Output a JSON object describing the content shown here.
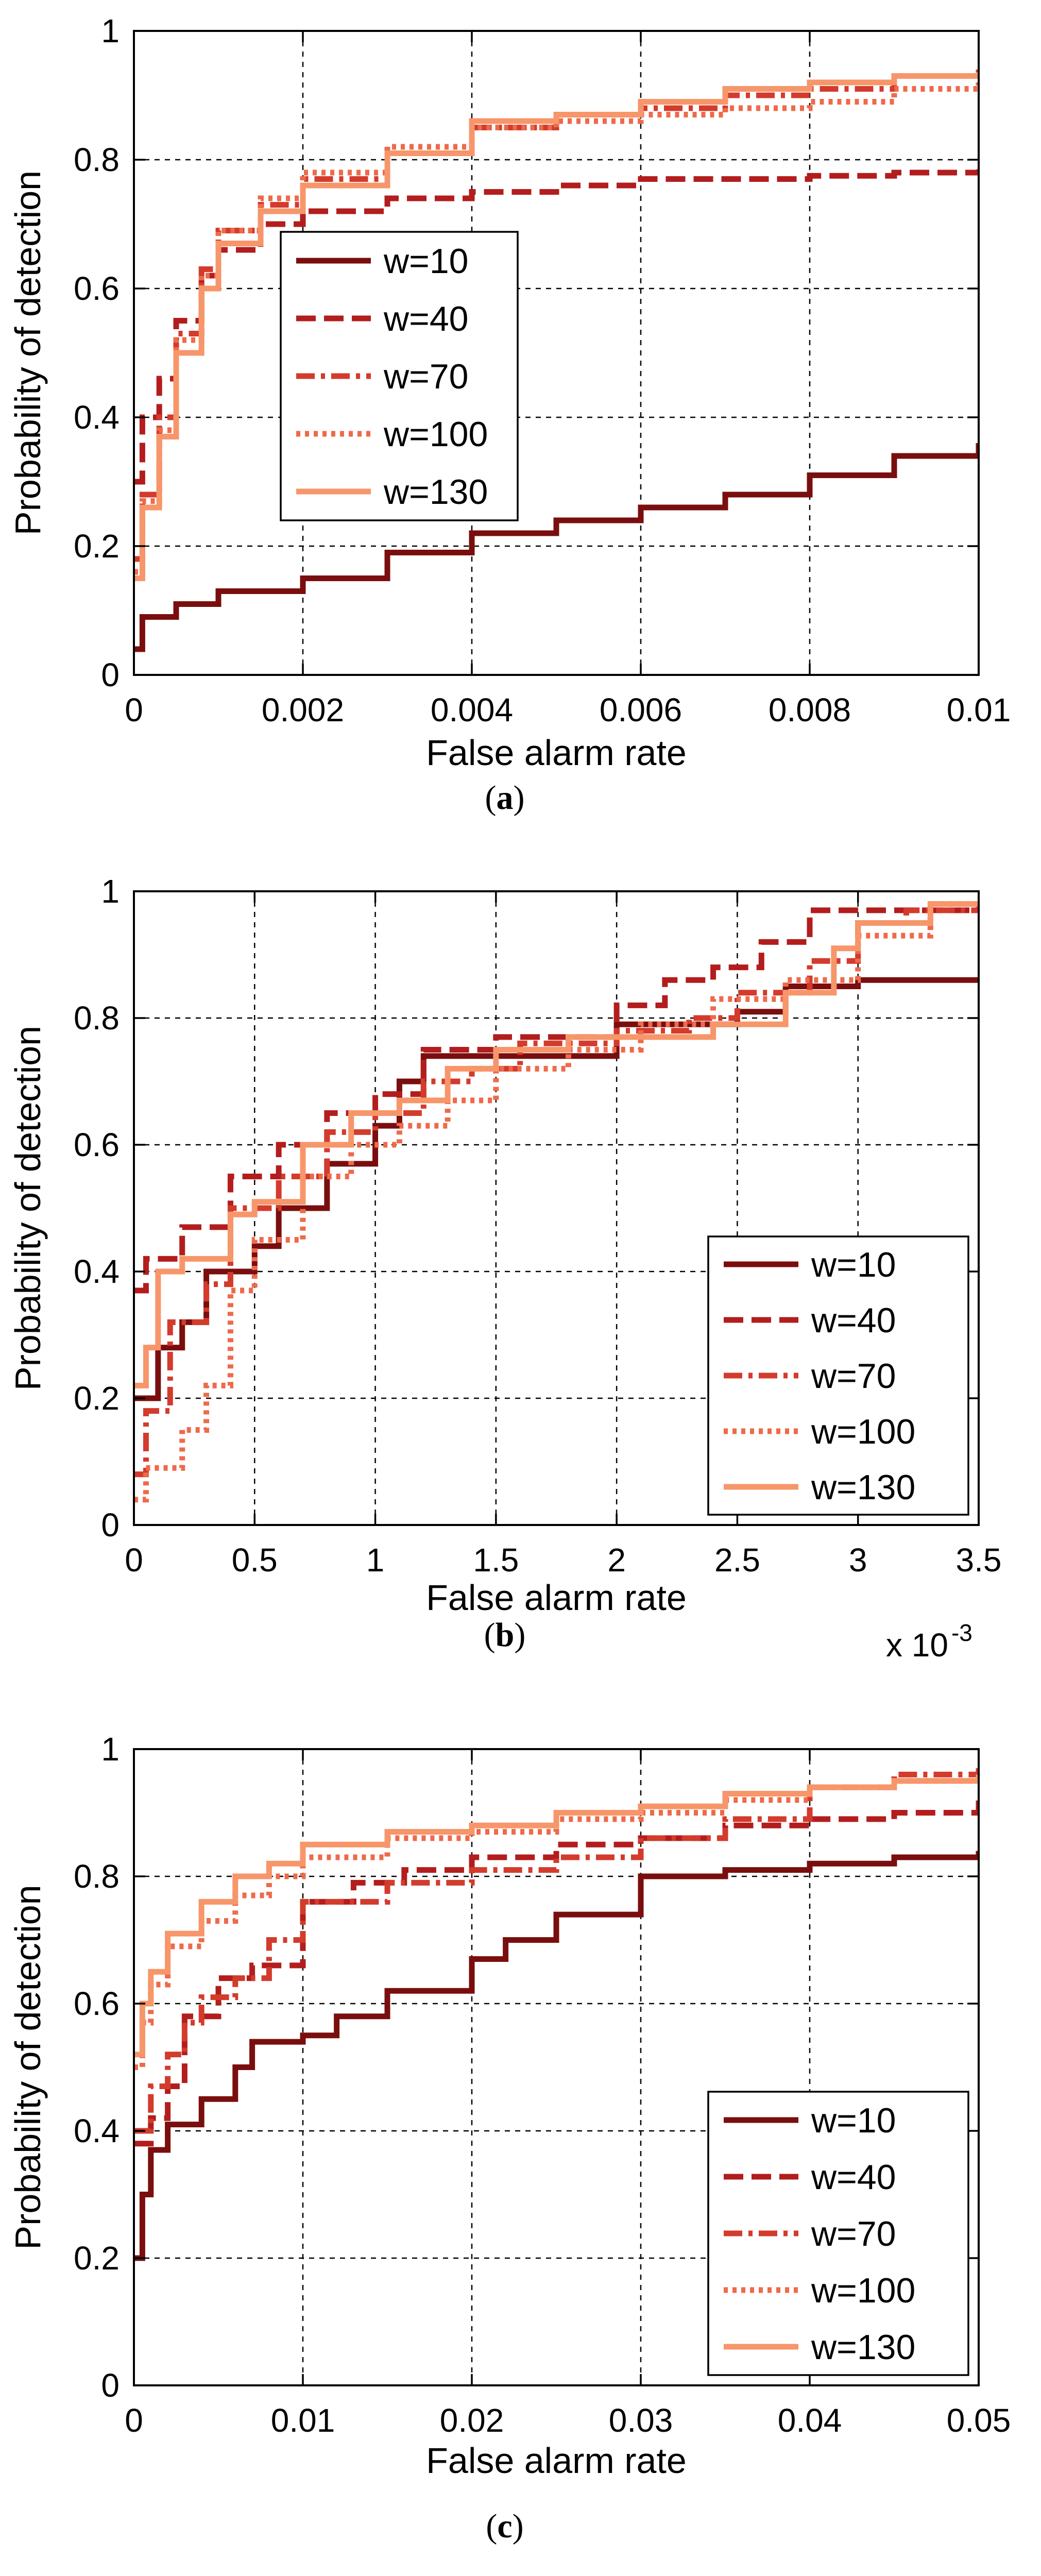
{
  "legend_labels": [
    "w=10",
    "w=40",
    "w=70",
    "w=100",
    "w=130"
  ],
  "series_colors": [
    "#7a0e0e",
    "#b31d1d",
    "#d33b2c",
    "#ee6a4a",
    "#f7966a"
  ],
  "chart_data": [
    {
      "type": "line",
      "panel_caption": "(a)",
      "caption_letter": "a",
      "xlabel": "False alarm rate",
      "ylabel": "Probability of detection",
      "xlim": [
        0,
        0.01
      ],
      "ylim": [
        0,
        1
      ],
      "xticks": [
        0,
        0.002,
        0.004,
        0.006,
        0.008,
        0.01
      ],
      "xtick_labels": [
        "0",
        "0.002",
        "0.004",
        "0.006",
        "0.008",
        "0.01"
      ],
      "yticks": [
        0,
        0.2,
        0.4,
        0.6,
        0.8,
        1
      ],
      "ytick_labels": [
        "0",
        "0.2",
        "0.4",
        "0.6",
        "0.8",
        "1"
      ],
      "x_exponent_label": "",
      "grid": true,
      "legend_position": "middle-left",
      "series": [
        {
          "name": "w=10",
          "style": "solid",
          "x": [
            0,
            0.0001,
            0.0005,
            0.001,
            0.002,
            0.003,
            0.004,
            0.005,
            0.006,
            0.007,
            0.008,
            0.009,
            0.01
          ],
          "y": [
            0.04,
            0.09,
            0.11,
            0.13,
            0.15,
            0.19,
            0.22,
            0.24,
            0.26,
            0.28,
            0.31,
            0.34,
            0.36
          ]
        },
        {
          "name": "w=40",
          "style": "dashed",
          "x": [
            0,
            0.0001,
            0.0003,
            0.0005,
            0.0008,
            0.001,
            0.0015,
            0.002,
            0.003,
            0.004,
            0.005,
            0.006,
            0.007,
            0.008,
            0.009,
            0.01
          ],
          "y": [
            0.3,
            0.4,
            0.46,
            0.55,
            0.62,
            0.66,
            0.7,
            0.72,
            0.74,
            0.75,
            0.76,
            0.77,
            0.77,
            0.775,
            0.78,
            0.785
          ]
        },
        {
          "name": "w=70",
          "style": "dashdot",
          "x": [
            0,
            0.0001,
            0.0003,
            0.0005,
            0.0008,
            0.001,
            0.0015,
            0.002,
            0.003,
            0.004,
            0.005,
            0.006,
            0.007,
            0.008,
            0.009,
            0.01
          ],
          "y": [
            0.18,
            0.28,
            0.4,
            0.53,
            0.63,
            0.69,
            0.73,
            0.77,
            0.81,
            0.85,
            0.87,
            0.88,
            0.9,
            0.91,
            0.93,
            0.94
          ]
        },
        {
          "name": "w=100",
          "style": "dotted",
          "x": [
            0,
            0.0001,
            0.0003,
            0.0005,
            0.0008,
            0.001,
            0.0015,
            0.002,
            0.003,
            0.004,
            0.005,
            0.006,
            0.007,
            0.008,
            0.009,
            0.01
          ],
          "y": [
            0.16,
            0.27,
            0.38,
            0.52,
            0.62,
            0.69,
            0.74,
            0.78,
            0.82,
            0.85,
            0.86,
            0.87,
            0.88,
            0.89,
            0.91,
            0.92
          ]
        },
        {
          "name": "w=130",
          "style": "solid",
          "x": [
            0,
            0.0001,
            0.0003,
            0.0005,
            0.0008,
            0.001,
            0.0015,
            0.002,
            0.003,
            0.004,
            0.005,
            0.006,
            0.007,
            0.008,
            0.009,
            0.01
          ],
          "y": [
            0.15,
            0.26,
            0.37,
            0.5,
            0.6,
            0.67,
            0.72,
            0.76,
            0.81,
            0.86,
            0.87,
            0.89,
            0.91,
            0.92,
            0.93,
            0.93
          ]
        }
      ]
    },
    {
      "type": "line",
      "panel_caption": "(b)",
      "caption_letter": "b",
      "xlabel": "False alarm rate",
      "ylabel": "Probability of detection",
      "xlim": [
        0,
        3.5
      ],
      "ylim": [
        0,
        1
      ],
      "xticks": [
        0,
        0.5,
        1,
        1.5,
        2,
        2.5,
        3,
        3.5
      ],
      "xtick_labels": [
        "0",
        "0.5",
        "1",
        "1.5",
        "2",
        "2.5",
        "3",
        "3.5"
      ],
      "yticks": [
        0,
        0.2,
        0.4,
        0.6,
        0.8,
        1
      ],
      "ytick_labels": [
        "0",
        "0.2",
        "0.4",
        "0.6",
        "0.8",
        "1"
      ],
      "x_exponent_label": "x 10",
      "x_exponent_power": "-3",
      "grid": true,
      "legend_position": "bottom-right",
      "series": [
        {
          "name": "w=10",
          "style": "solid",
          "x": [
            0,
            0.1,
            0.2,
            0.3,
            0.5,
            0.6,
            0.8,
            1.0,
            1.1,
            1.2,
            1.5,
            2.0,
            2.2,
            2.5,
            2.7,
            3.0,
            3.5
          ],
          "y": [
            0.2,
            0.28,
            0.32,
            0.4,
            0.44,
            0.5,
            0.57,
            0.63,
            0.7,
            0.74,
            0.74,
            0.79,
            0.79,
            0.81,
            0.85,
            0.86,
            0.86
          ]
        },
        {
          "name": "w=40",
          "style": "dashed",
          "x": [
            0,
            0.05,
            0.2,
            0.4,
            0.6,
            0.8,
            1.0,
            1.2,
            1.5,
            2.0,
            2.2,
            2.4,
            2.6,
            2.8,
            3.0,
            3.5
          ],
          "y": [
            0.37,
            0.42,
            0.47,
            0.55,
            0.6,
            0.65,
            0.68,
            0.75,
            0.77,
            0.82,
            0.86,
            0.88,
            0.92,
            0.97,
            0.97,
            0.98
          ]
        },
        {
          "name": "w=70",
          "style": "dashdot",
          "x": [
            0,
            0.05,
            0.15,
            0.3,
            0.4,
            0.6,
            0.8,
            1.0,
            1.2,
            1.4,
            1.6,
            2.0,
            2.3,
            2.5,
            2.8,
            3.0,
            3.2,
            3.5
          ],
          "y": [
            0.08,
            0.18,
            0.32,
            0.38,
            0.5,
            0.55,
            0.62,
            0.65,
            0.7,
            0.72,
            0.76,
            0.78,
            0.8,
            0.84,
            0.89,
            0.95,
            0.97,
            0.98
          ]
        },
        {
          "name": "w=100",
          "style": "dotted",
          "x": [
            0,
            0.05,
            0.2,
            0.3,
            0.4,
            0.5,
            0.7,
            0.9,
            1.1,
            1.3,
            1.5,
            1.8,
            2.1,
            2.4,
            2.7,
            3.0,
            3.3,
            3.5
          ],
          "y": [
            0.04,
            0.09,
            0.15,
            0.22,
            0.37,
            0.45,
            0.55,
            0.6,
            0.63,
            0.67,
            0.72,
            0.75,
            0.79,
            0.83,
            0.86,
            0.93,
            0.98,
            0.98
          ]
        },
        {
          "name": "w=130",
          "style": "solid",
          "x": [
            0,
            0.05,
            0.1,
            0.2,
            0.4,
            0.5,
            0.7,
            0.9,
            1.1,
            1.3,
            1.5,
            1.8,
            2.1,
            2.4,
            2.7,
            2.9,
            3.0,
            3.3,
            3.5
          ],
          "y": [
            0.22,
            0.28,
            0.4,
            0.42,
            0.49,
            0.51,
            0.6,
            0.65,
            0.67,
            0.72,
            0.75,
            0.77,
            0.77,
            0.79,
            0.84,
            0.91,
            0.95,
            0.98,
            0.98
          ]
        }
      ]
    },
    {
      "type": "line",
      "panel_caption": "(c)",
      "caption_letter": "c",
      "xlabel": "False alarm rate",
      "ylabel": "Probability of detection",
      "xlim": [
        0,
        0.05
      ],
      "ylim": [
        0,
        1
      ],
      "xticks": [
        0,
        0.01,
        0.02,
        0.03,
        0.04,
        0.05
      ],
      "xtick_labels": [
        "0",
        "0.01",
        "0.02",
        "0.03",
        "0.04",
        "0.05"
      ],
      "yticks": [
        0,
        0.2,
        0.4,
        0.6,
        0.8,
        1
      ],
      "ytick_labels": [
        "0",
        "0.2",
        "0.4",
        "0.6",
        "0.8",
        "1"
      ],
      "x_exponent_label": "",
      "grid": true,
      "legend_position": "bottom-right",
      "series": [
        {
          "name": "w=10",
          "style": "solid",
          "x": [
            0,
            0.0005,
            0.001,
            0.002,
            0.004,
            0.006,
            0.007,
            0.01,
            0.012,
            0.015,
            0.02,
            0.022,
            0.025,
            0.03,
            0.035,
            0.04,
            0.045,
            0.05
          ],
          "y": [
            0.2,
            0.3,
            0.37,
            0.41,
            0.45,
            0.5,
            0.54,
            0.55,
            0.58,
            0.62,
            0.67,
            0.7,
            0.74,
            0.8,
            0.81,
            0.82,
            0.83,
            0.84
          ]
        },
        {
          "name": "w=40",
          "style": "dashed",
          "x": [
            0,
            0.001,
            0.002,
            0.003,
            0.005,
            0.007,
            0.01,
            0.013,
            0.016,
            0.02,
            0.025,
            0.03,
            0.035,
            0.04,
            0.045,
            0.05
          ],
          "y": [
            0.38,
            0.42,
            0.47,
            0.58,
            0.64,
            0.66,
            0.76,
            0.79,
            0.81,
            0.83,
            0.85,
            0.86,
            0.88,
            0.89,
            0.9,
            0.92
          ]
        },
        {
          "name": "w=70",
          "style": "dashdot",
          "x": [
            0,
            0.001,
            0.002,
            0.003,
            0.004,
            0.006,
            0.008,
            0.01,
            0.015,
            0.02,
            0.025,
            0.03,
            0.035,
            0.04,
            0.045,
            0.05
          ],
          "y": [
            0.4,
            0.47,
            0.52,
            0.57,
            0.61,
            0.64,
            0.7,
            0.76,
            0.79,
            0.81,
            0.83,
            0.86,
            0.89,
            0.94,
            0.96,
            0.97
          ]
        },
        {
          "name": "w=100",
          "style": "dotted",
          "x": [
            0,
            0.0005,
            0.001,
            0.002,
            0.004,
            0.006,
            0.008,
            0.01,
            0.015,
            0.02,
            0.025,
            0.03,
            0.035,
            0.04,
            0.045,
            0.05
          ],
          "y": [
            0.5,
            0.57,
            0.63,
            0.69,
            0.73,
            0.77,
            0.8,
            0.83,
            0.86,
            0.87,
            0.89,
            0.9,
            0.92,
            0.94,
            0.95,
            0.96
          ]
        },
        {
          "name": "w=130",
          "style": "solid",
          "x": [
            0,
            0.0005,
            0.001,
            0.002,
            0.004,
            0.006,
            0.008,
            0.01,
            0.015,
            0.02,
            0.025,
            0.03,
            0.035,
            0.04,
            0.045,
            0.05
          ],
          "y": [
            0.52,
            0.6,
            0.65,
            0.71,
            0.76,
            0.8,
            0.82,
            0.85,
            0.87,
            0.88,
            0.9,
            0.91,
            0.93,
            0.94,
            0.95,
            0.96
          ]
        }
      ]
    }
  ]
}
